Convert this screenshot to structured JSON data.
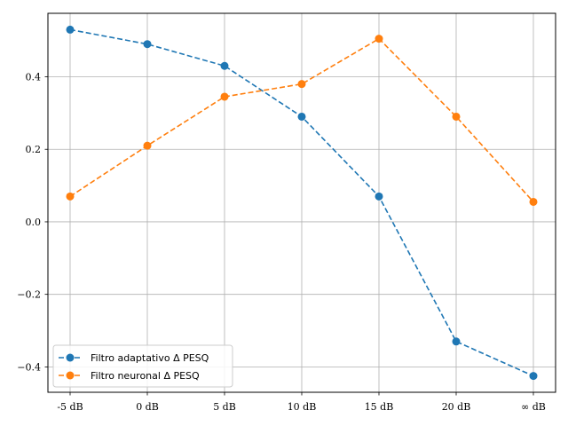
{
  "chart_data": {
    "type": "line",
    "categories": [
      "-5 dB",
      "0 dB",
      "5 dB",
      "10 dB",
      "15 dB",
      "20 dB",
      "∞ dB"
    ],
    "series": [
      {
        "name": "Filtro adaptativo Δ PESQ",
        "color": "#1f77b4",
        "values": [
          0.53,
          0.49,
          0.43,
          0.29,
          0.07,
          -0.33,
          -0.425
        ]
      },
      {
        "name": "Filtro neuronal Δ PESQ",
        "color": "#ff7f0e",
        "values": [
          0.07,
          0.21,
          0.345,
          0.38,
          0.505,
          0.29,
          0.055
        ]
      }
    ],
    "ylim": [
      -0.47,
      0.575
    ],
    "yticks": [
      -0.4,
      -0.2,
      0.0,
      0.2,
      0.4
    ],
    "ytick_labels": [
      "−0.4",
      "−0.2",
      "0.0",
      "0.2",
      "0.4"
    ],
    "grid": true,
    "line_style": "dashed",
    "marker": "circle",
    "legend_position": "lower-left"
  }
}
